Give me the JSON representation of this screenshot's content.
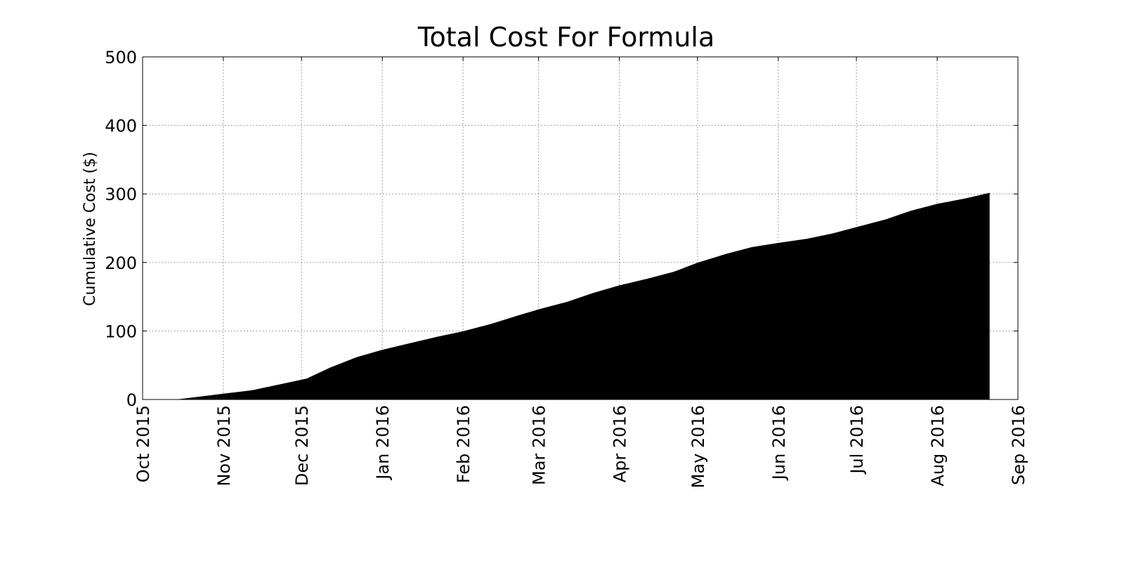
{
  "chart_data": {
    "type": "area",
    "title": "Total Cost For Formula",
    "xlabel": "",
    "ylabel": "Cumulative Cost ($)",
    "xlim": [
      "2015-10-01",
      "2016-09-01"
    ],
    "ylim": [
      0,
      500
    ],
    "grid": true,
    "fill_color": "#000000",
    "x_ticks": [
      {
        "date": "2015-10-01",
        "label": "Oct 2015"
      },
      {
        "date": "2015-11-01",
        "label": "Nov 2015"
      },
      {
        "date": "2015-12-01",
        "label": "Dec 2015"
      },
      {
        "date": "2016-01-01",
        "label": "Jan 2016"
      },
      {
        "date": "2016-02-01",
        "label": "Feb 2016"
      },
      {
        "date": "2016-03-01",
        "label": "Mar 2016"
      },
      {
        "date": "2016-04-01",
        "label": "Apr 2016"
      },
      {
        "date": "2016-05-01",
        "label": "May 2016"
      },
      {
        "date": "2016-06-01",
        "label": "Jun 2016"
      },
      {
        "date": "2016-07-01",
        "label": "Jul 2016"
      },
      {
        "date": "2016-08-01",
        "label": "Aug 2016"
      },
      {
        "date": "2016-09-01",
        "label": "Sep 2016"
      }
    ],
    "y_ticks": [
      {
        "value": 0,
        "label": "0"
      },
      {
        "value": 100,
        "label": "100"
      },
      {
        "value": 200,
        "label": "200"
      },
      {
        "value": 300,
        "label": "300"
      },
      {
        "value": 400,
        "label": "400"
      },
      {
        "value": 500,
        "label": "500"
      }
    ],
    "series": [
      {
        "x": [
          "2015-10-15",
          "2015-11-01",
          "2015-11-12",
          "2015-11-22",
          "2015-12-03",
          "2015-12-12",
          "2015-12-22",
          "2016-01-01",
          "2016-01-12",
          "2016-01-22",
          "2016-02-01",
          "2016-02-12",
          "2016-02-22",
          "2016-03-01",
          "2016-03-12",
          "2016-03-22",
          "2016-04-01",
          "2016-04-12",
          "2016-04-22",
          "2016-05-01",
          "2016-05-12",
          "2016-05-22",
          "2016-06-01",
          "2016-06-12",
          "2016-06-22",
          "2016-07-01",
          "2016-07-12",
          "2016-07-22",
          "2016-08-01",
          "2016-08-12",
          "2016-08-21"
        ],
        "y": [
          0,
          8,
          13,
          21,
          30,
          46,
          61,
          72,
          82,
          91,
          99,
          110,
          122,
          131,
          142,
          155,
          166,
          176,
          186,
          199,
          212,
          222,
          228,
          234,
          242,
          251,
          262,
          275,
          285,
          293,
          301
        ]
      }
    ]
  }
}
